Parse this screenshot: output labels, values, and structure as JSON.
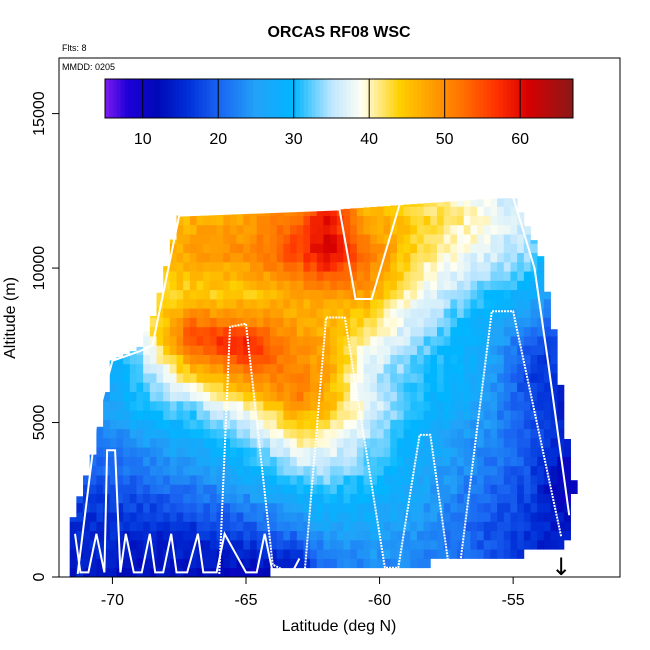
{
  "chart_data": {
    "type": "heatmap",
    "title": "ORCAS RF08 WSC",
    "flights_note": "Flts: 8",
    "mmdd_note": "MMDD: 0205",
    "xlabel": "Latitude (deg N)",
    "ylabel": "Altitude (m)",
    "xlim": [
      -72,
      -51
    ],
    "ylim": [
      0,
      16800
    ],
    "x_ticks": [
      -70,
      -65,
      -60,
      -55
    ],
    "x_tick_labels": [
      "-70",
      "-65",
      "-60",
      "-55"
    ],
    "y_ticks": [
      0,
      5000,
      10000,
      15000
    ],
    "y_tick_labels": [
      "0",
      "5000",
      "10000",
      "15000"
    ],
    "colorbar": {
      "range": [
        5,
        67
      ],
      "ticks": [
        10,
        20,
        30,
        40,
        50,
        60
      ],
      "tick_labels": [
        "10",
        "20",
        "30",
        "40",
        "50",
        "60"
      ],
      "colors": [
        [
          5,
          "#7e1cf2"
        ],
        [
          8,
          "#1f00d8"
        ],
        [
          12,
          "#0009b8"
        ],
        [
          16,
          "#0030d8"
        ],
        [
          20,
          "#1a63f2"
        ],
        [
          25,
          "#22a2f8"
        ],
        [
          30,
          "#00b6ff"
        ],
        [
          35,
          "#bfe6ff"
        ],
        [
          39,
          "#fffff2"
        ],
        [
          44,
          "#ffd000"
        ],
        [
          48,
          "#ffa000"
        ],
        [
          52,
          "#ff7600"
        ],
        [
          57,
          "#ff3000"
        ],
        [
          61,
          "#d80000"
        ],
        [
          67,
          "#8a1818"
        ]
      ]
    },
    "field": {
      "x_bin": 0.25,
      "z_bin": 300,
      "envelope_top": [
        [
          -71.6,
          1600
        ],
        [
          -70.6,
          4300
        ],
        [
          -70.0,
          7000
        ],
        [
          -69.0,
          7400
        ],
        [
          -68.4,
          8600
        ],
        [
          -67.5,
          11700
        ],
        [
          -61.5,
          11900
        ],
        [
          -55.0,
          12300
        ],
        [
          -54.0,
          10500
        ],
        [
          -53.5,
          8200
        ],
        [
          -53.0,
          4600
        ],
        [
          -52.7,
          3000
        ]
      ],
      "envelope_bottom": [
        [
          -71.6,
          200
        ],
        [
          -67.5,
          200
        ],
        [
          -64.0,
          300
        ],
        [
          -62.0,
          500
        ],
        [
          -60.0,
          500
        ],
        [
          -58.0,
          600
        ],
        [
          -55.5,
          700
        ],
        [
          -54.0,
          1000
        ],
        [
          -53.0,
          1200
        ],
        [
          -52.7,
          3000
        ]
      ],
      "anchors": [
        {
          "lat": -71.0,
          "z": [
            [
              0,
              14
            ],
            [
              2000,
              16
            ],
            [
              4000,
              20
            ],
            [
              6000,
              22
            ],
            [
              8000,
              22
            ],
            [
              12000,
              22
            ]
          ]
        },
        {
          "lat": -69.0,
          "z": [
            [
              0,
              12
            ],
            [
              1500,
              15
            ],
            [
              3000,
              20
            ],
            [
              4500,
              25
            ],
            [
              5500,
              30
            ],
            [
              6500,
              32
            ],
            [
              7500,
              35
            ],
            [
              8500,
              40
            ],
            [
              10000,
              45
            ],
            [
              11500,
              42
            ],
            [
              12500,
              40
            ]
          ]
        },
        {
          "lat": -67.0,
          "z": [
            [
              0,
              12
            ],
            [
              1500,
              16
            ],
            [
              3000,
              22
            ],
            [
              4500,
              28
            ],
            [
              5500,
              33
            ],
            [
              6500,
              44
            ],
            [
              7800,
              56
            ],
            [
              8500,
              50
            ],
            [
              9200,
              44
            ],
            [
              10500,
              48
            ],
            [
              11500,
              47
            ],
            [
              12500,
              45
            ]
          ]
        },
        {
          "lat": -65.0,
          "z": [
            [
              0,
              11
            ],
            [
              1500,
              18
            ],
            [
              3000,
              26
            ],
            [
              4500,
              33
            ],
            [
              5500,
              40
            ],
            [
              6500,
              50
            ],
            [
              7500,
              60
            ],
            [
              8300,
              50
            ],
            [
              9200,
              44
            ],
            [
              10500,
              50
            ],
            [
              11500,
              48
            ],
            [
              12500,
              45
            ]
          ]
        },
        {
          "lat": -63.0,
          "z": [
            [
              0,
              12
            ],
            [
              1500,
              22
            ],
            [
              3000,
              30
            ],
            [
              4000,
              38
            ],
            [
              5000,
              45
            ],
            [
              6000,
              52
            ],
            [
              7000,
              50
            ],
            [
              8000,
              48
            ],
            [
              9000,
              47
            ],
            [
              10500,
              56
            ],
            [
              11200,
              55
            ],
            [
              12500,
              50
            ]
          ]
        },
        {
          "lat": -62.0,
          "z": [
            [
              0,
              20
            ],
            [
              1500,
              25
            ],
            [
              3000,
              32
            ],
            [
              4500,
              40
            ],
            [
              5500,
              46
            ],
            [
              6500,
              48
            ],
            [
              7500,
              47
            ],
            [
              8500,
              46
            ],
            [
              9500,
              52
            ],
            [
              10500,
              62
            ],
            [
              11500,
              60
            ],
            [
              12500,
              55
            ]
          ]
        },
        {
          "lat": -60.5,
          "z": [
            [
              0,
              22
            ],
            [
              1500,
              26
            ],
            [
              3000,
              30
            ],
            [
              4500,
              35
            ],
            [
              5500,
              38
            ],
            [
              6500,
              36
            ],
            [
              7500,
              40
            ],
            [
              8500,
              44
            ],
            [
              9500,
              50
            ],
            [
              10500,
              52
            ],
            [
              11500,
              48
            ],
            [
              12500,
              45
            ]
          ]
        },
        {
          "lat": -58.5,
          "z": [
            [
              0,
              22
            ],
            [
              1500,
              24
            ],
            [
              3000,
              26
            ],
            [
              4500,
              28
            ],
            [
              5500,
              30
            ],
            [
              6500,
              31
            ],
            [
              7500,
              33
            ],
            [
              8500,
              36
            ],
            [
              9500,
              40
            ],
            [
              10500,
              42
            ],
            [
              11500,
              44
            ],
            [
              12500,
              42
            ]
          ]
        },
        {
          "lat": -56.5,
          "z": [
            [
              0,
              20
            ],
            [
              1500,
              20
            ],
            [
              3000,
              22
            ],
            [
              4500,
              24
            ],
            [
              5500,
              26
            ],
            [
              6500,
              28
            ],
            [
              7500,
              28
            ],
            [
              8500,
              30
            ],
            [
              9500,
              34
            ],
            [
              10500,
              38
            ],
            [
              11500,
              40
            ],
            [
              12500,
              38
            ]
          ]
        },
        {
          "lat": -54.5,
          "z": [
            [
              0,
              15
            ],
            [
              1500,
              16
            ],
            [
              3000,
              18
            ],
            [
              4500,
              20
            ],
            [
              5500,
              19
            ],
            [
              6500,
              18
            ],
            [
              7500,
              20
            ],
            [
              8500,
              24
            ],
            [
              9500,
              30
            ],
            [
              10500,
              34
            ],
            [
              11500,
              35
            ],
            [
              12500,
              34
            ]
          ]
        },
        {
          "lat": -53.0,
          "z": [
            [
              0,
              12
            ],
            [
              1500,
              14
            ],
            [
              3000,
              10
            ],
            [
              4500,
              14
            ],
            [
              5500,
              14
            ],
            [
              6500,
              14
            ],
            [
              7500,
              16
            ],
            [
              8500,
              20
            ],
            [
              12500,
              26
            ]
          ]
        }
      ]
    },
    "flight_track": [
      [
        -71.4,
        1400
      ],
      [
        -71.2,
        150
      ],
      [
        -70.9,
        150
      ],
      [
        -70.6,
        1400
      ],
      [
        -70.3,
        150
      ],
      [
        -70.2,
        4100
      ],
      [
        -69.9,
        4100
      ],
      [
        -69.7,
        150
      ],
      [
        -69.5,
        1400
      ],
      [
        -69.2,
        150
      ],
      [
        -68.9,
        150
      ],
      [
        -68.6,
        1400
      ],
      [
        -68.4,
        150
      ],
      [
        -68.1,
        150
      ],
      [
        -67.8,
        1400
      ],
      [
        -67.6,
        150
      ],
      [
        -67.2,
        150
      ],
      [
        -66.8,
        1400
      ],
      [
        -66.6,
        150
      ],
      [
        -66.1,
        150
      ],
      [
        -65.8,
        1400
      ],
      [
        -65.0,
        150
      ],
      [
        -64.6,
        150
      ],
      [
        -64.3,
        1400
      ],
      [
        -64.0,
        150
      ],
      [
        -63.5,
        150
      ],
      [
        -63.3,
        100
      ],
      [
        -63.0,
        600
      ]
    ],
    "flight_track_2": [
      [
        -71.3,
        100
      ],
      [
        -70.6,
        5000
      ],
      [
        -70.0,
        7000
      ],
      [
        -69.0,
        7300
      ],
      [
        -68.5,
        7500
      ],
      [
        -67.5,
        11700
      ],
      [
        -61.5,
        11900
      ],
      [
        -60.9,
        9000
      ],
      [
        -60.3,
        9000
      ],
      [
        -59.2,
        12200
      ],
      [
        -55.0,
        12300
      ],
      [
        -54.2,
        10000
      ],
      [
        -53.7,
        7000
      ],
      [
        -52.9,
        2000
      ]
    ],
    "flight_track_3": [
      [
        -66.0,
        100
      ],
      [
        -65.6,
        8100
      ],
      [
        -65.0,
        8200
      ],
      [
        -64.0,
        400
      ],
      [
        -63.3,
        100
      ],
      [
        -62.8,
        200
      ],
      [
        -62.0,
        8400
      ],
      [
        -61.3,
        8400
      ],
      [
        -59.8,
        300
      ],
      [
        -59.3,
        300
      ],
      [
        -58.5,
        4600
      ],
      [
        -58.1,
        4600
      ],
      [
        -57.4,
        300
      ],
      [
        -57.0,
        300
      ],
      [
        -55.8,
        8600
      ],
      [
        -55.0,
        8600
      ],
      [
        -53.2,
        1300
      ]
    ],
    "arrow_marker": {
      "lat": -53.2,
      "note": "↓"
    }
  }
}
